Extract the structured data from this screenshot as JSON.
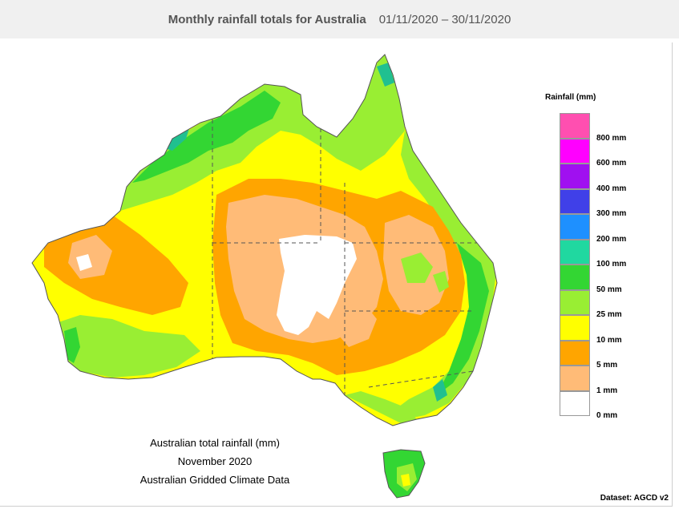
{
  "header": {
    "title": "Monthly rainfall totals for Australia",
    "dates": "01/11/2020 – 30/11/2020"
  },
  "legend": {
    "title": "Rainfall (mm)",
    "items": [
      {
        "label": "",
        "color": "#ff4fb0"
      },
      {
        "label": "800 mm",
        "color": "#ff00ff"
      },
      {
        "label": "600 mm",
        "color": "#a010f0"
      },
      {
        "label": "400 mm",
        "color": "#4040e8"
      },
      {
        "label": "300 mm",
        "color": "#1e90ff"
      },
      {
        "label": "200 mm",
        "color": "#20d8a0"
      },
      {
        "label": "100 mm",
        "color": "#33d633"
      },
      {
        "label": "50 mm",
        "color": "#99ee33"
      },
      {
        "label": "25 mm",
        "color": "#ffff00"
      },
      {
        "label": "10 mm",
        "color": "#ffa500"
      },
      {
        "label": "5 mm",
        "color": "#ffbb77"
      },
      {
        "label": "1 mm",
        "color": "#ffffff"
      },
      {
        "label": "0 mm",
        "color": null
      }
    ]
  },
  "caption": {
    "line1": "Australian total rainfall (mm)",
    "line2": "November 2020",
    "line3": "Australian Gridded Climate Data"
  },
  "dataset": "Dataset: AGCD v2",
  "colors": {
    "green": "#33d633",
    "teal": "#20c090",
    "lightgreen": "#99ee33",
    "yellow": "#ffff00",
    "orange": "#ffa500",
    "peach": "#ffbb77",
    "white": "#ffffff",
    "border": "#555555"
  }
}
